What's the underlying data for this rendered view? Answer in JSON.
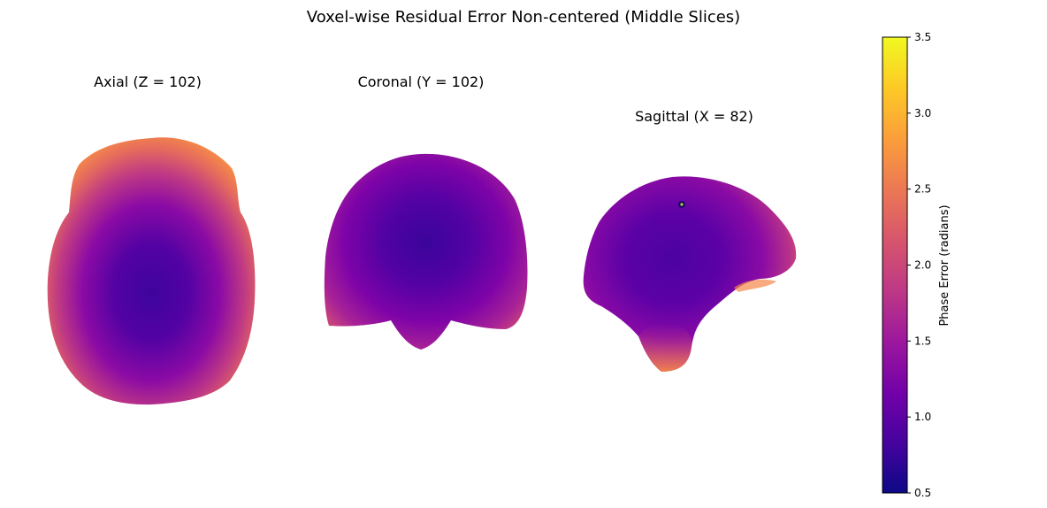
{
  "figure": {
    "title": "Voxel-wise Residual Error Non-centered (Middle Slices)"
  },
  "panels": [
    {
      "title": "Axial (Z = 102)"
    },
    {
      "title": "Coronal (Y = 102)"
    },
    {
      "title": "Sagittal (X = 82)"
    }
  ],
  "colorbar": {
    "label": "Phase Error (radians)",
    "colormap": "plasma",
    "min": 0.5,
    "max": 3.5,
    "ticks": [
      "0.5",
      "1.0",
      "1.5",
      "2.0",
      "2.5",
      "3.0",
      "3.5"
    ],
    "tick_values": [
      0.5,
      1.0,
      1.5,
      2.0,
      2.5,
      3.0,
      3.5
    ]
  },
  "chart_data": {
    "type": "heatmap",
    "title": "Voxel-wise Residual Error Non-centered (Middle Slices)",
    "subplots": [
      "Axial (Z = 102)",
      "Coronal (Y = 102)",
      "Sagittal (X = 82)"
    ],
    "colorbar_label": "Phase Error (radians)",
    "value_range": [
      0.5,
      3.5
    ],
    "description_values": {
      "center_error_approx": 0.9,
      "edge_error_approx": 2.6
    }
  },
  "colors": {
    "plasma_stops": [
      "#0d0887",
      "#46039f",
      "#7201a8",
      "#9c179e",
      "#bd3786",
      "#d8576b",
      "#ed7953",
      "#fb9f3a",
      "#fdca26",
      "#f0f921"
    ]
  }
}
